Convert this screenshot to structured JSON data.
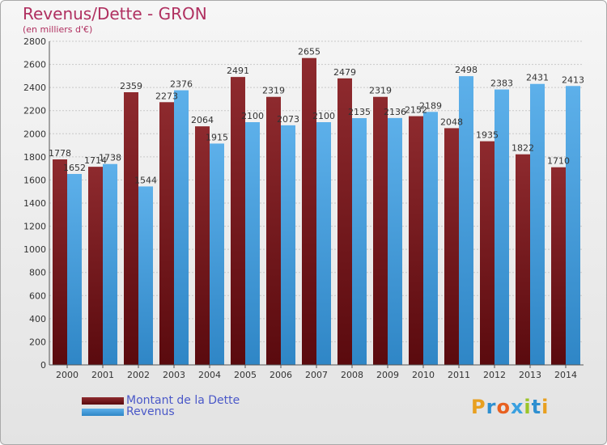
{
  "header": {
    "title": "Revenus/Dette - GRON",
    "subtitle": "(en milliers d'€)"
  },
  "legend": {
    "debt_label": "Montant de la Dette",
    "revenue_label": "Revenus"
  },
  "brand": {
    "logo_text": "Proxiti"
  },
  "colors": {
    "debt": "#7a1a1e",
    "revenue": "#4ea6e2",
    "title": "#b03060",
    "legend_text": "#4a58c8"
  },
  "chart_data": {
    "type": "bar",
    "title": "Revenus/Dette - GRON",
    "subtitle": "(en milliers d'€)",
    "categories": [
      "2000",
      "2001",
      "2002",
      "2003",
      "2004",
      "2005",
      "2006",
      "2007",
      "2008",
      "2009",
      "2010",
      "2011",
      "2012",
      "2013",
      "2014"
    ],
    "series": [
      {
        "name": "Montant de la Dette",
        "values": [
          1778,
          1714,
          2359,
          2273,
          2064,
          2491,
          2319,
          2655,
          2479,
          2319,
          2152,
          2048,
          1935,
          1822,
          1710
        ]
      },
      {
        "name": "Revenus",
        "values": [
          1652,
          1738,
          1544,
          2376,
          1915,
          2100,
          2073,
          2100,
          2135,
          2136,
          2189,
          2498,
          2383,
          2431,
          2413
        ]
      }
    ],
    "value_labels": [
      [
        "1778",
        "1714",
        "2359",
        "2273",
        "2064",
        "2491",
        "2319",
        "2655",
        "2479",
        "2319",
        "2152",
        "2048",
        "1935",
        "1822",
        "1710"
      ],
      [
        "1652",
        "1738",
        "1544",
        "2376",
        "1915",
        "2100",
        "2073",
        "2100",
        "2135",
        "2136",
        "2189",
        "2498",
        "2383",
        "2431",
        "2413"
      ]
    ],
    "ylim": [
      0,
      2800
    ],
    "yticks": [
      0,
      200,
      400,
      600,
      800,
      1000,
      1200,
      1400,
      1600,
      1800,
      2000,
      2200,
      2400,
      2600,
      2800
    ],
    "grid": true,
    "legend_position": "bottom-left"
  }
}
